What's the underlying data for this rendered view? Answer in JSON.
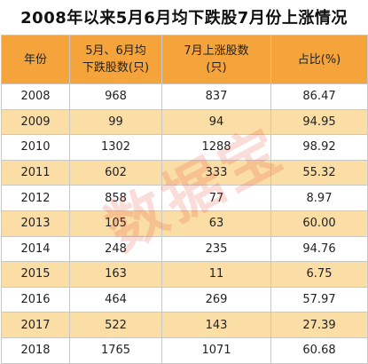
{
  "title": "2008年以来5月6月均下跌股7月份上涨情况",
  "header": {
    "col1": "年份",
    "col2_line1": "5月、6月均",
    "col2_line2": "下跌股数(只)",
    "col3_line1": "7月上涨股数",
    "col3_line2": "(只)",
    "col4": "占比(%)"
  },
  "rows": [
    {
      "year": "2008",
      "down": "968",
      "up": "837",
      "ratio": "86.47"
    },
    {
      "year": "2009",
      "down": "99",
      "up": "94",
      "ratio": "94.95"
    },
    {
      "year": "2010",
      "down": "1302",
      "up": "1288",
      "ratio": "98.92"
    },
    {
      "year": "2011",
      "down": "602",
      "up": "333",
      "ratio": "55.32"
    },
    {
      "year": "2012",
      "down": "858",
      "up": "77",
      "ratio": "8.97"
    },
    {
      "year": "2013",
      "down": "105",
      "up": "63",
      "ratio": "60.00"
    },
    {
      "year": "2014",
      "down": "248",
      "up": "235",
      "ratio": "94.76"
    },
    {
      "year": "2015",
      "down": "163",
      "up": "11",
      "ratio": "6.75"
    },
    {
      "year": "2016",
      "down": "464",
      "up": "269",
      "ratio": "57.97"
    },
    {
      "year": "2017",
      "down": "522",
      "up": "143",
      "ratio": "27.39"
    },
    {
      "year": "2018",
      "down": "1765",
      "up": "1071",
      "ratio": "60.68"
    }
  ],
  "watermark": "数据宝",
  "colors": {
    "header_bg": "#f4a43a",
    "stripe_bg": "#fbdda6",
    "watermark": "#e43c28"
  }
}
